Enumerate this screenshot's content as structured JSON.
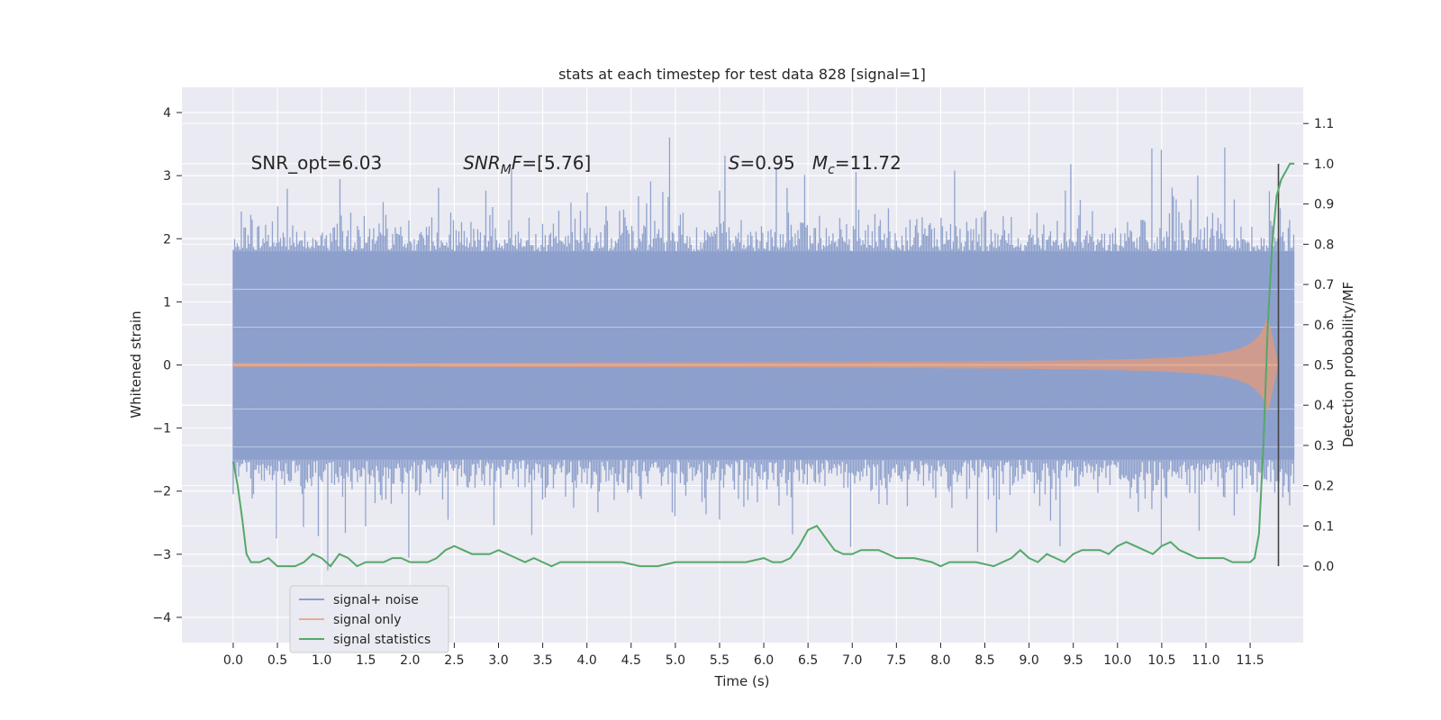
{
  "chart_data": {
    "type": "line",
    "title": "stats at each timestep for test data 828 [signal=1]",
    "xlabel": "Time (s)",
    "ylabel": "Whitened strain",
    "ylabel_right": "Detection probability/MF",
    "xlim": [
      -0.58,
      12.1
    ],
    "ylim": [
      -4.4,
      4.4
    ],
    "ylim_right": [
      -0.19,
      1.19
    ],
    "x_ticks": [
      0.0,
      0.5,
      1.0,
      1.5,
      2.0,
      2.5,
      3.0,
      3.5,
      4.0,
      4.5,
      5.0,
      5.5,
      6.0,
      6.5,
      7.0,
      7.5,
      8.0,
      8.5,
      9.0,
      9.5,
      10.0,
      10.5,
      11.0,
      11.5
    ],
    "x_tick_labels": [
      "0.0",
      "0.5",
      "1.0",
      "1.5",
      "2.0",
      "2.5",
      "3.0",
      "3.5",
      "4.0",
      "4.5",
      "5.0",
      "5.5",
      "6.0",
      "6.5",
      "7.0",
      "7.5",
      "8.0",
      "8.5",
      "9.0",
      "9.5",
      "10.0",
      "10.5",
      "11.0",
      "11.5"
    ],
    "y_ticks": [
      -4,
      -3,
      -2,
      -1,
      0,
      1,
      2,
      3,
      4
    ],
    "y_tick_labels": [
      "−4",
      "−3",
      "−2",
      "−1",
      "0",
      "1",
      "2",
      "3",
      "4"
    ],
    "y_ticks_right": [
      0.0,
      0.1,
      0.2,
      0.3,
      0.4,
      0.5,
      0.6,
      0.7,
      0.8,
      0.9,
      1.0,
      1.1
    ],
    "y_tick_labels_right": [
      "0.0",
      "0.1",
      "0.2",
      "0.3",
      "0.4",
      "0.5",
      "0.6",
      "0.7",
      "0.8",
      "0.9",
      "1.0",
      "1.1"
    ],
    "grid": true,
    "legend_position": "lower-left",
    "annotations": [
      {
        "text": "SNR_opt=6.03",
        "x": 0.2,
        "y": 3.1
      },
      {
        "text": "SNR_MF=[5.76]",
        "x": 2.6,
        "y": 3.1
      },
      {
        "text": "S=0.95   M_c=11.72",
        "x": 5.6,
        "y": 3.1
      }
    ],
    "vline": {
      "x": 11.82,
      "y_right": [
        0.0,
        1.0
      ]
    },
    "series": [
      {
        "name": "signal+ noise",
        "color": "#8c9fcc",
        "axis": "left",
        "kind": "dense_noise",
        "x_range": [
          0.0,
          12.0
        ],
        "typical_envelope": [
          -1.5,
          1.8
        ],
        "peak_range": [
          -4.0,
          4.0
        ]
      },
      {
        "name": "signal only",
        "color": "#dd8452",
        "axis": "left",
        "kind": "chirp",
        "x_range": [
          0.0,
          11.82
        ],
        "amplitude_start": 0.02,
        "amplitude_peak": 0.8,
        "peak_time": 11.7
      },
      {
        "name": "signal statistics",
        "color": "#55a868",
        "axis": "right",
        "x": [
          0.0,
          0.05,
          0.1,
          0.15,
          0.2,
          0.3,
          0.4,
          0.5,
          0.6,
          0.7,
          0.8,
          0.9,
          1.0,
          1.1,
          1.2,
          1.3,
          1.4,
          1.5,
          1.6,
          1.7,
          1.8,
          1.9,
          2.0,
          2.1,
          2.2,
          2.3,
          2.4,
          2.5,
          2.6,
          2.7,
          2.8,
          2.9,
          3.0,
          3.1,
          3.2,
          3.3,
          3.4,
          3.5,
          3.6,
          3.7,
          3.8,
          3.9,
          4.0,
          4.2,
          4.4,
          4.6,
          4.8,
          5.0,
          5.2,
          5.4,
          5.6,
          5.8,
          6.0,
          6.1,
          6.2,
          6.3,
          6.4,
          6.5,
          6.6,
          6.7,
          6.8,
          6.9,
          7.0,
          7.1,
          7.2,
          7.3,
          7.4,
          7.5,
          7.7,
          7.9,
          8.0,
          8.1,
          8.2,
          8.4,
          8.6,
          8.8,
          8.9,
          9.0,
          9.1,
          9.2,
          9.3,
          9.4,
          9.5,
          9.6,
          9.7,
          9.8,
          9.9,
          10.0,
          10.1,
          10.2,
          10.3,
          10.4,
          10.5,
          10.6,
          10.7,
          10.8,
          10.9,
          11.0,
          11.1,
          11.2,
          11.3,
          11.4,
          11.5,
          11.55,
          11.6,
          11.65,
          11.7,
          11.75,
          11.8,
          11.85,
          11.9,
          11.95,
          12.0
        ],
        "values": [
          0.26,
          0.2,
          0.12,
          0.03,
          0.01,
          0.01,
          0.02,
          0.0,
          0.0,
          0.0,
          0.01,
          0.03,
          0.02,
          0.0,
          0.03,
          0.02,
          0.0,
          0.01,
          0.01,
          0.01,
          0.02,
          0.02,
          0.01,
          0.01,
          0.01,
          0.02,
          0.04,
          0.05,
          0.04,
          0.03,
          0.03,
          0.03,
          0.04,
          0.03,
          0.02,
          0.01,
          0.02,
          0.01,
          0.0,
          0.01,
          0.01,
          0.01,
          0.01,
          0.01,
          0.01,
          0.0,
          0.0,
          0.01,
          0.01,
          0.01,
          0.01,
          0.01,
          0.02,
          0.01,
          0.01,
          0.02,
          0.05,
          0.09,
          0.1,
          0.07,
          0.04,
          0.03,
          0.03,
          0.04,
          0.04,
          0.04,
          0.03,
          0.02,
          0.02,
          0.01,
          0.0,
          0.01,
          0.01,
          0.01,
          0.0,
          0.02,
          0.04,
          0.02,
          0.01,
          0.03,
          0.02,
          0.01,
          0.03,
          0.04,
          0.04,
          0.04,
          0.03,
          0.05,
          0.06,
          0.05,
          0.04,
          0.03,
          0.05,
          0.06,
          0.04,
          0.03,
          0.02,
          0.02,
          0.02,
          0.02,
          0.01,
          0.01,
          0.01,
          0.02,
          0.08,
          0.3,
          0.6,
          0.8,
          0.92,
          0.96,
          0.98,
          1.0,
          1.0
        ]
      }
    ]
  }
}
